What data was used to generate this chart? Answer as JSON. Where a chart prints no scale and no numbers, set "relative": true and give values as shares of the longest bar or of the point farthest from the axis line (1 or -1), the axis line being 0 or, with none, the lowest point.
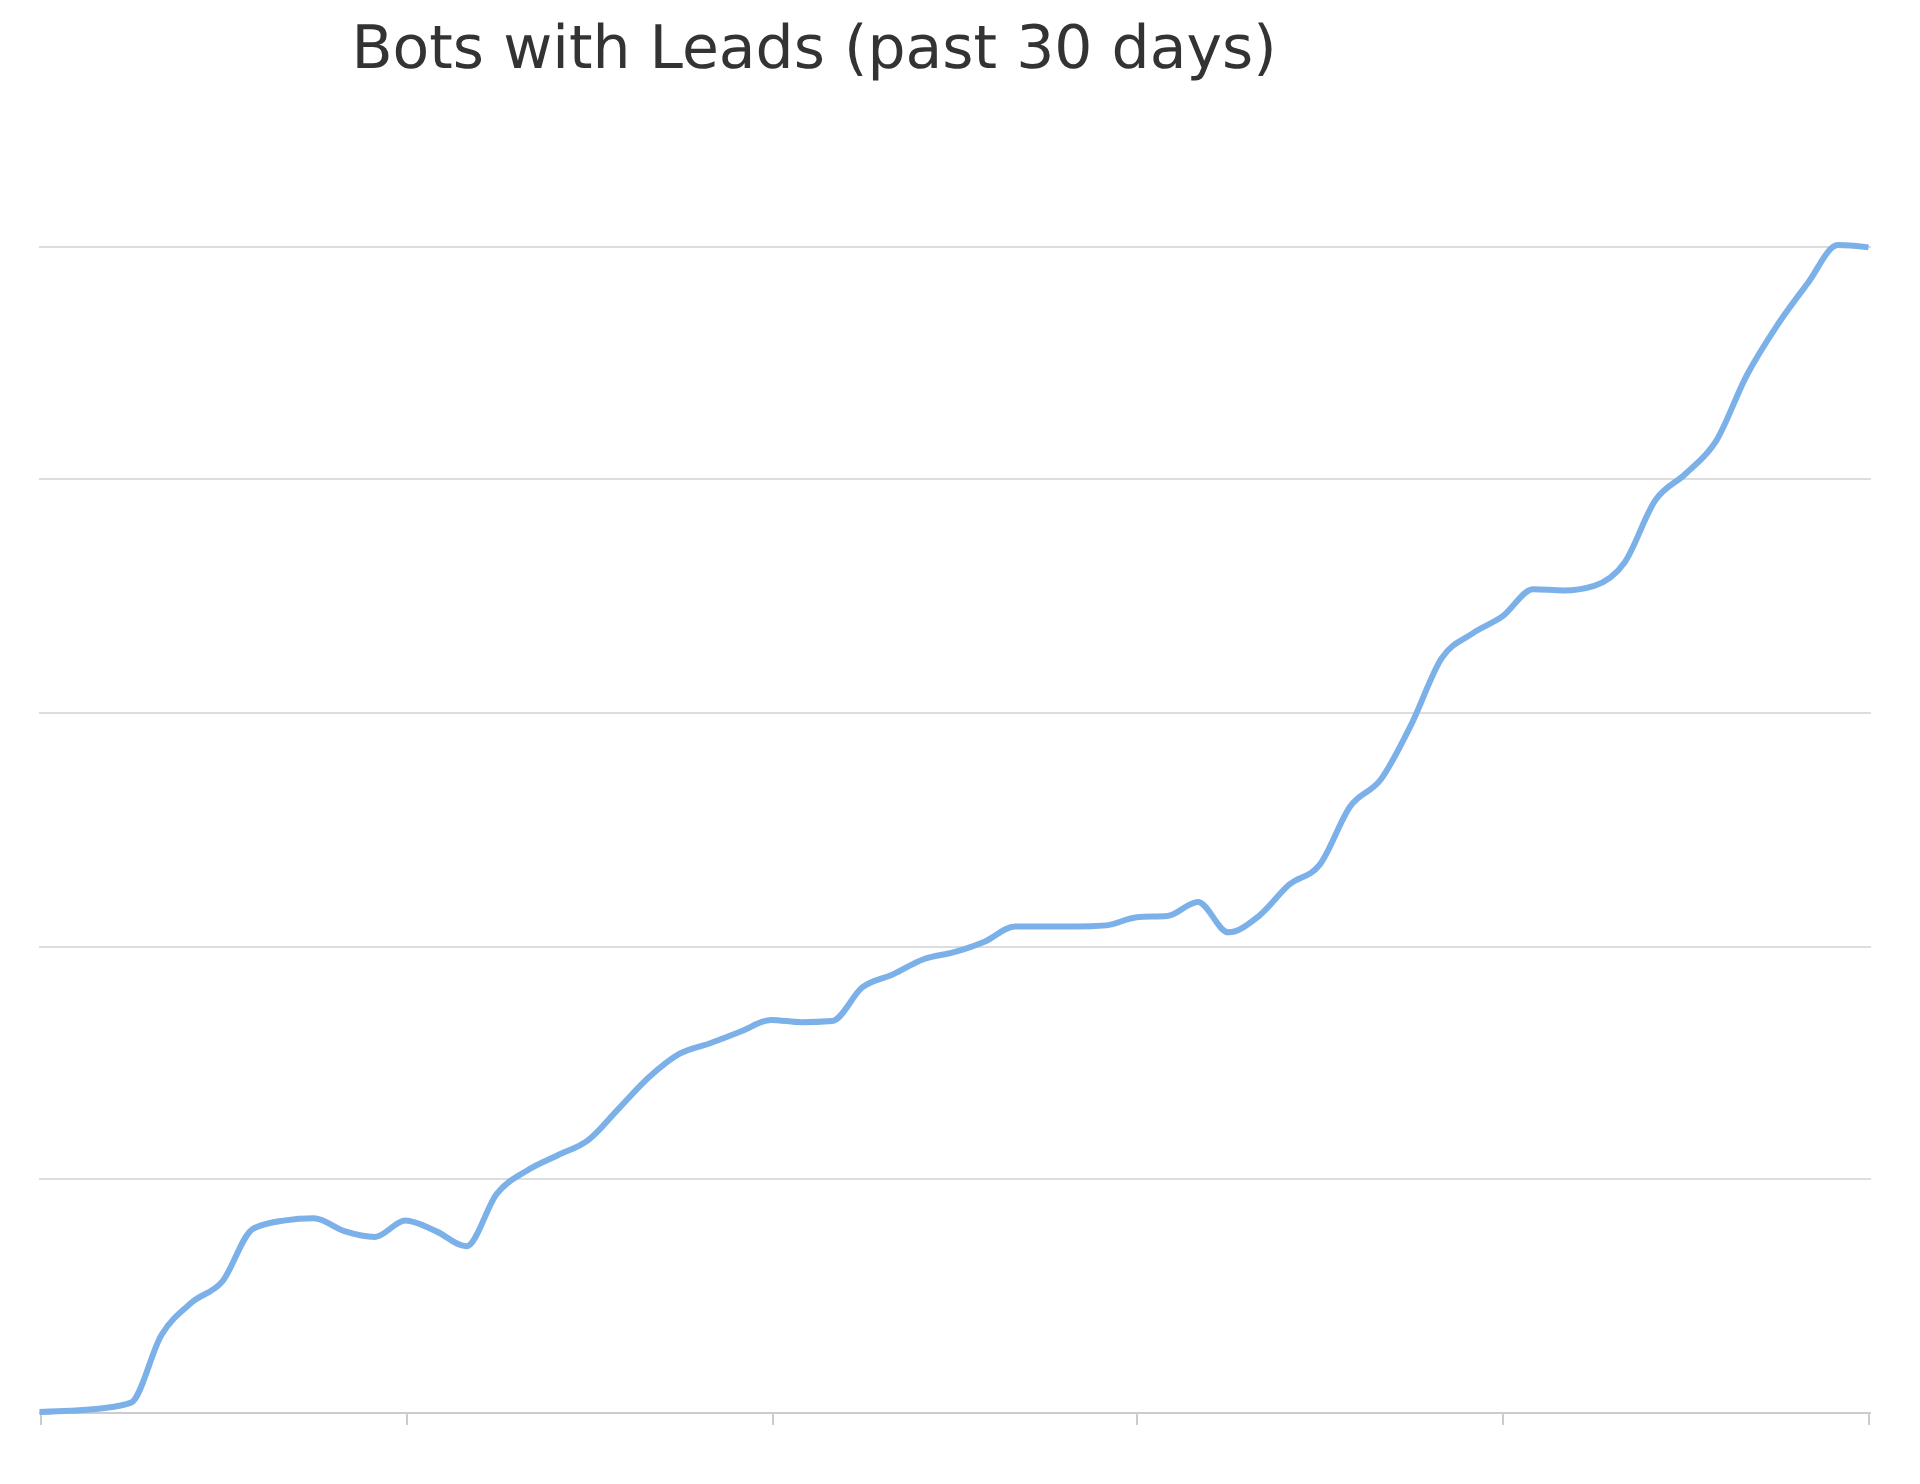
{
  "chart_data": {
    "type": "line",
    "title": "Bots with Leads (past 30 days)",
    "relative": true,
    "grid": "y",
    "categories": [
      null,
      null,
      null,
      null,
      null,
      null,
      null,
      null,
      null,
      null,
      null,
      null,
      null,
      null,
      null,
      null,
      null,
      null,
      null,
      null,
      null,
      null,
      null,
      null,
      null,
      null,
      null,
      null,
      null,
      null,
      null,
      null,
      null,
      null,
      null,
      null,
      null,
      null,
      null,
      null,
      null,
      null,
      null,
      null,
      null,
      null,
      null,
      null,
      null,
      null,
      null,
      null,
      null,
      null,
      null,
      null,
      null,
      null,
      null,
      null,
      null
    ],
    "series": [
      {
        "color": "#7cb0e8",
        "values": [
          0,
          0.001,
          0.003,
          0.008,
          0.066,
          0.094,
          0.112,
          0.157,
          0.164,
          0.166,
          0.155,
          0.15,
          0.164,
          0.155,
          0.142,
          0.187,
          0.207,
          0.22,
          0.233,
          0.26,
          0.287,
          0.307,
          0.316,
          0.326,
          0.336,
          0.334,
          0.335,
          0.364,
          0.375,
          0.388,
          0.394,
          0.403,
          0.416,
          0.416,
          0.416,
          0.417,
          0.424,
          0.425,
          0.437,
          0.411,
          0.425,
          0.452,
          0.469,
          0.519,
          0.542,
          0.589,
          0.646,
          0.667,
          0.682,
          0.705,
          0.704,
          0.708,
          0.728,
          0.781,
          0.804,
          0.832,
          0.888,
          0.931,
          0.967,
          1,
          0.998
        ]
      }
    ]
  }
}
